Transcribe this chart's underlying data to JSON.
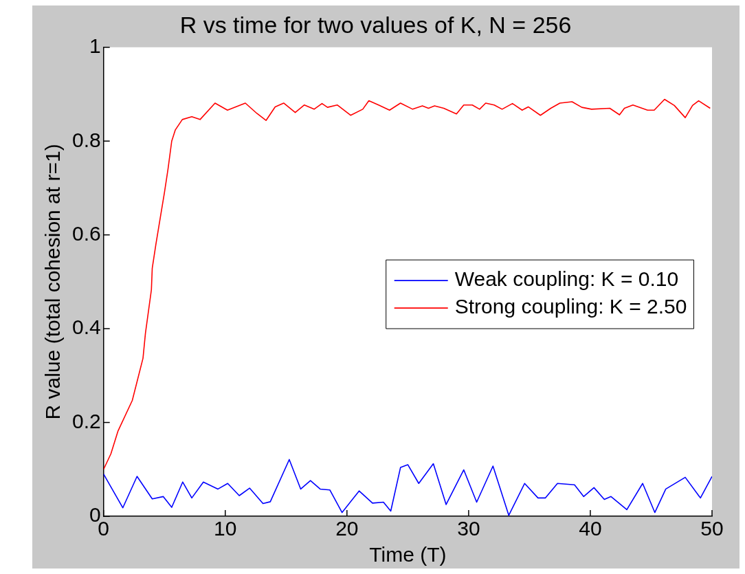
{
  "chart_data": {
    "type": "line",
    "title": "R vs time for two values of K, N = 256",
    "xlabel": "Time (T)",
    "ylabel": "R value (total cohesion at r=1)",
    "xlim": [
      0,
      50
    ],
    "xticks": [
      0,
      10,
      20,
      30,
      40,
      50
    ],
    "ylim": [
      0,
      1
    ],
    "yticks": [
      0,
      0.2,
      0.4,
      0.6,
      0.8,
      1
    ],
    "grid": false,
    "legend": "right",
    "marker": "none",
    "line_style": "solid",
    "series": [
      {
        "name": "Weak coupling: K = 0.10",
        "color": "#0000ff",
        "x": [
          0,
          1.58,
          2.75,
          4.0,
          4.9,
          5.6,
          6.5,
          7.25,
          8.2,
          9.4,
          10.2,
          11.15,
          12.0,
          13.1,
          13.7,
          15.26,
          16.2,
          17.0,
          17.8,
          18.6,
          19.6,
          21.0,
          22.1,
          23.0,
          23.6,
          24.4,
          25.0,
          25.9,
          27.1,
          28.15,
          29.6,
          30.66,
          32.0,
          33.3,
          34.6,
          35.7,
          36.3,
          37.3,
          38.7,
          39.45,
          40.3,
          41.15,
          41.7,
          43.0,
          44.3,
          45.3,
          46.2,
          47.8,
          49.05,
          50
        ],
        "values": [
          0.09,
          0.018,
          0.085,
          0.037,
          0.042,
          0.019,
          0.073,
          0.039,
          0.073,
          0.058,
          0.07,
          0.044,
          0.06,
          0.027,
          0.031,
          0.121,
          0.058,
          0.076,
          0.058,
          0.056,
          0.008,
          0.054,
          0.028,
          0.03,
          0.011,
          0.104,
          0.11,
          0.07,
          0.112,
          0.025,
          0.099,
          0.03,
          0.107,
          0.002,
          0.07,
          0.039,
          0.039,
          0.07,
          0.067,
          0.042,
          0.061,
          0.036,
          0.042,
          0.014,
          0.07,
          0.008,
          0.058,
          0.083,
          0.039,
          0.085
        ]
      },
      {
        "name": "Strong coupling: K = 2.50",
        "color": "#ff0000",
        "x": [
          0,
          0.6,
          1.19,
          2.36,
          3.24,
          3.44,
          3.93,
          4.0,
          4.3,
          4.7,
          5.0,
          5.3,
          5.6,
          5.9,
          6.47,
          7.25,
          7.93,
          9.16,
          10.18,
          11.65,
          12.6,
          13.35,
          14.1,
          14.8,
          15.75,
          16.5,
          17.3,
          17.95,
          18.4,
          19.2,
          20.3,
          21.3,
          21.8,
          22.6,
          23.5,
          24.4,
          25.4,
          26.2,
          26.7,
          27.2,
          27.96,
          29.0,
          29.6,
          30.3,
          30.9,
          31.4,
          32.1,
          32.75,
          33.6,
          34.4,
          34.9,
          35.9,
          36.75,
          37.5,
          38.5,
          39.3,
          40.1,
          41.6,
          42.4,
          42.8,
          43.5,
          44.7,
          45.25,
          46.1,
          46.9,
          47.8,
          48.4,
          48.9,
          49.85
        ],
        "values": [
          0.1,
          0.133,
          0.182,
          0.247,
          0.337,
          0.39,
          0.483,
          0.529,
          0.58,
          0.643,
          0.69,
          0.741,
          0.8,
          0.824,
          0.846,
          0.852,
          0.846,
          0.881,
          0.866,
          0.881,
          0.859,
          0.844,
          0.873,
          0.881,
          0.861,
          0.877,
          0.868,
          0.88,
          0.872,
          0.877,
          0.855,
          0.868,
          0.886,
          0.877,
          0.866,
          0.881,
          0.868,
          0.875,
          0.87,
          0.875,
          0.87,
          0.858,
          0.877,
          0.877,
          0.868,
          0.881,
          0.877,
          0.868,
          0.88,
          0.866,
          0.873,
          0.855,
          0.87,
          0.881,
          0.884,
          0.872,
          0.868,
          0.87,
          0.856,
          0.87,
          0.877,
          0.866,
          0.866,
          0.889,
          0.876,
          0.85,
          0.876,
          0.886,
          0.87
        ]
      }
    ]
  }
}
